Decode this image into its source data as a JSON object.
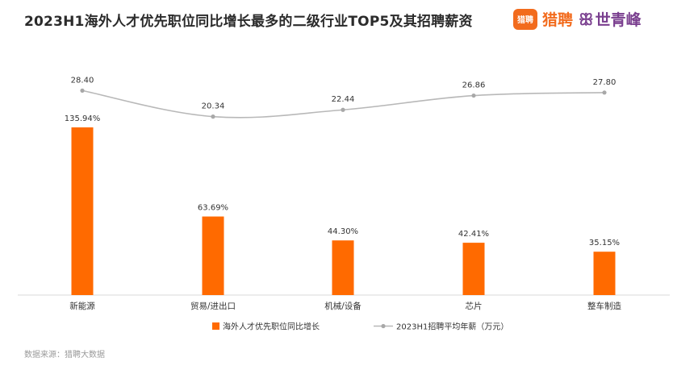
{
  "header": {
    "title": "2023H1海外人才优先职位同比增长最多的二级行业TOP5及其招聘薪资"
  },
  "logos": {
    "liepin_badge": "猎聘",
    "liepin_text": "猎聘",
    "shiqingfeng_mark": "ꕥ",
    "shiqingfeng_text": "世青峰"
  },
  "colors": {
    "bar": "#ff6a00",
    "line": "#b8b8b8",
    "point": "#a8a8a8"
  },
  "chart_data": {
    "type": "bar",
    "categories": [
      "新能源",
      "贸易/进出口",
      "机械/设备",
      "芯片",
      "整车制造"
    ],
    "series": [
      {
        "name": "海外人才优先职位同比增长",
        "type": "bar",
        "values": [
          135.94,
          63.69,
          44.3,
          42.41,
          35.15
        ],
        "labels": [
          "135.94%",
          "63.69%",
          "44.30%",
          "42.41%",
          "35.15%"
        ]
      },
      {
        "name": "2023H1招聘平均年薪（万元）",
        "type": "line",
        "values": [
          28.4,
          20.34,
          22.44,
          26.86,
          27.8
        ],
        "labels": [
          "28.40",
          "20.34",
          "22.44",
          "26.86",
          "27.80"
        ]
      }
    ],
    "legend_position": "bottom"
  },
  "footer": {
    "source": "数据来源：猎聘大数据"
  }
}
